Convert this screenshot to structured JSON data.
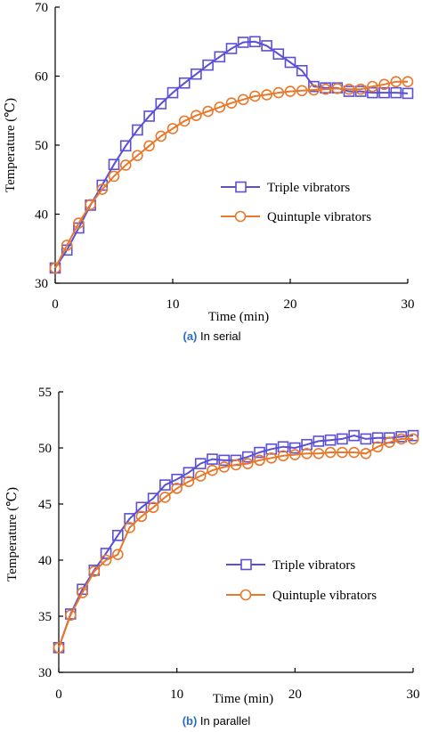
{
  "colors": {
    "triple": "#5b4fd6",
    "quintuple": "#e8782a",
    "caption_letter": "#2a6ebb",
    "axis": "#000000"
  },
  "chart_data": [
    {
      "type": "line",
      "caption_letter": "(a)",
      "caption_text": " In serial",
      "xlabel": "Time (min)",
      "ylabel": "Temperature (℃)",
      "xlim": [
        0,
        30
      ],
      "ylim": [
        30,
        70
      ],
      "xticks": [
        0,
        10,
        20,
        30
      ],
      "yticks": [
        30,
        40,
        50,
        60,
        70
      ],
      "legend_position": "right-middle",
      "grid": false,
      "series": [
        {
          "name": "Triple vibrators",
          "marker": "square",
          "x": [
            0,
            1,
            2,
            3,
            4,
            5,
            6,
            7,
            8,
            9,
            10,
            11,
            12,
            13,
            14,
            15,
            16,
            17,
            18,
            19,
            20,
            21,
            22,
            23,
            24,
            25,
            26,
            27,
            28,
            29,
            30
          ],
          "y": [
            32.2,
            34.8,
            38.0,
            41.3,
            44.2,
            47.2,
            49.9,
            52.2,
            54.2,
            56.0,
            57.6,
            59.0,
            60.3,
            61.6,
            62.8,
            64.0,
            64.9,
            65.0,
            64.4,
            63.2,
            62.0,
            60.8,
            58.5,
            58.3,
            58.3,
            57.8,
            57.8,
            57.6,
            57.6,
            57.6,
            57.5
          ]
        },
        {
          "name": "Quintuple vibrators",
          "marker": "circle",
          "x": [
            0,
            1,
            2,
            3,
            4,
            5,
            6,
            7,
            8,
            9,
            10,
            11,
            12,
            13,
            14,
            15,
            16,
            17,
            18,
            19,
            20,
            21,
            22,
            23,
            24,
            25,
            26,
            27,
            28,
            29,
            30
          ],
          "y": [
            32.2,
            35.5,
            38.7,
            41.4,
            43.6,
            45.5,
            47.1,
            48.5,
            49.9,
            51.3,
            52.4,
            53.5,
            54.3,
            54.9,
            55.5,
            56.1,
            56.6,
            57.1,
            57.3,
            57.6,
            57.8,
            57.9,
            58.0,
            58.1,
            58.2,
            58.1,
            58.1,
            58.5,
            58.8,
            59.2,
            59.2
          ]
        }
      ]
    },
    {
      "type": "line",
      "caption_letter": "(b)",
      "caption_text": " In parallel",
      "xlabel": "Time (min)",
      "ylabel": "Temperature (℃)",
      "xlim": [
        0,
        30
      ],
      "ylim": [
        30,
        55
      ],
      "xticks": [
        0,
        10,
        20,
        30
      ],
      "yticks": [
        30,
        35,
        40,
        45,
        50,
        55
      ],
      "legend_position": "right-lower",
      "grid": false,
      "series": [
        {
          "name": "Triple vibrators",
          "marker": "square",
          "x": [
            0,
            1,
            2,
            3,
            4,
            5,
            6,
            7,
            8,
            9,
            10,
            11,
            12,
            13,
            14,
            15,
            16,
            17,
            18,
            19,
            20,
            21,
            22,
            23,
            24,
            25,
            26,
            27,
            28,
            29,
            30
          ],
          "y": [
            32.2,
            35.2,
            37.4,
            39.1,
            40.6,
            42.2,
            43.7,
            44.7,
            45.5,
            46.7,
            47.2,
            47.8,
            48.6,
            49.0,
            48.9,
            48.9,
            49.2,
            49.6,
            49.9,
            50.1,
            50.0,
            50.3,
            50.6,
            50.7,
            50.8,
            51.1,
            50.8,
            50.9,
            50.9,
            51.0,
            51.1
          ]
        },
        {
          "name": "Quintuple vibrators",
          "marker": "circle",
          "x": [
            0,
            1,
            2,
            3,
            4,
            5,
            6,
            7,
            8,
            9,
            10,
            11,
            12,
            13,
            14,
            15,
            16,
            17,
            18,
            19,
            20,
            21,
            22,
            23,
            24,
            25,
            26,
            27,
            28,
            29,
            30
          ],
          "y": [
            32.2,
            35.1,
            37.1,
            39.0,
            40.0,
            40.5,
            42.9,
            43.9,
            44.7,
            45.6,
            46.4,
            47.0,
            47.5,
            48.0,
            48.3,
            48.5,
            48.6,
            48.9,
            49.1,
            49.3,
            49.4,
            49.5,
            49.5,
            49.6,
            49.6,
            49.6,
            49.5,
            50.1,
            50.5,
            50.8,
            50.8
          ]
        }
      ]
    }
  ]
}
